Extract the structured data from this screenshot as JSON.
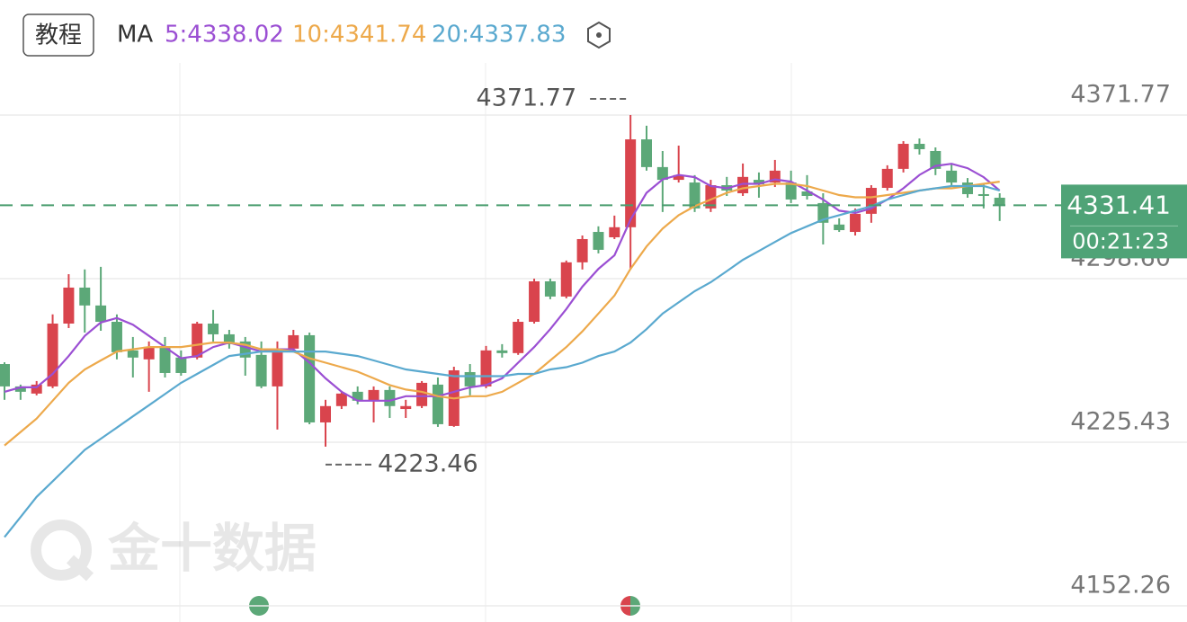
{
  "header": {
    "button": "教程",
    "ma_title": "MA"
  },
  "chart_data": {
    "type": "candlestick",
    "watermark": "金十数据",
    "ylim": [
      4145.03,
      4399.11
    ],
    "yticks": [
      4371.77,
      {
        "value": 4298.6,
        "label": "4298.60"
      },
      4225.43,
      4152.26
    ],
    "grid": true,
    "up_color": "#d9444d",
    "down_color": "#5ca878",
    "open": [
      4260.4,
      4250.4,
      4247.2,
      4250.4,
      4278.5,
      4294.6,
      4286.6,
      4279.3,
      4266.5,
      4262.5,
      4268.1,
      4263.3,
      4263.3,
      4278.5,
      4273.7,
      4270.5,
      4264.5,
      4250.4,
      4267.3,
      4273.3,
      4234.3,
      4241.6,
      4248.0,
      4244.0,
      4248.8,
      4240.3,
      4241.6,
      4251.2,
      4232.7,
      4256.8,
      4250.4,
      4266.5,
      4265.3,
      4279.3,
      4297.4,
      4290.6,
      4305.9,
      4319.5,
      4317.1,
      4321.6,
      4360.9,
      4348.5,
      4342.8,
      4341.6,
      4330.0,
      4340.4,
      4336.8,
      4342.8,
      4341.6,
      4341.6,
      4337.6,
      4332.4,
      4322.8,
      4319.5,
      4327.6,
      4339.2,
      4347.7,
      4358.9,
      4355.7,
      4346.9,
      4341.6,
      4336.4,
      4334.8
    ],
    "high": [
      4261.2,
      4251.2,
      4252.8,
      4282.6,
      4300.6,
      4302.7,
      4303.9,
      4282.6,
      4272.5,
      4270.5,
      4272.5,
      4266.5,
      4279.3,
      4284.6,
      4275.7,
      4272.5,
      4270.5,
      4270.5,
      4275.7,
      4274.5,
      4244.4,
      4248.4,
      4250.4,
      4250.4,
      4250.4,
      4244.4,
      4252.8,
      4254.4,
      4259.2,
      4260.4,
      4268.5,
      4269.3,
      4280.5,
      4298.6,
      4298.6,
      4306.7,
      4317.9,
      4322.0,
      4326.8,
      4371.77,
      4367.0,
      4355.7,
      4358.1,
      4344.9,
      4342.8,
      4344.1,
      4350.1,
      4346.1,
      4351.7,
      4346.9,
      4344.9,
      4336.8,
      4325.6,
      4330.0,
      4340.4,
      4349.3,
      4360.1,
      4361.3,
      4357.3,
      4350.1,
      4343.6,
      4340.8,
      4336.8
    ],
    "low": [
      4244.4,
      4244.4,
      4246.4,
      4249.6,
      4276.5,
      4274.5,
      4275.3,
      4262.5,
      4254.4,
      4248.0,
      4254.4,
      4255.2,
      4262.5,
      4270.5,
      4267.3,
      4255.2,
      4249.6,
      4231.1,
      4265.7,
      4233.5,
      4223.46,
      4240.3,
      4242.4,
      4234.3,
      4236.3,
      4236.3,
      4240.7,
      4232.3,
      4232.3,
      4246.4,
      4249.6,
      4263.3,
      4264.5,
      4278.5,
      4289.4,
      4289.8,
      4302.7,
      4309.9,
      4316.3,
      4302.7,
      4346.9,
      4328.4,
      4341.6,
      4328.4,
      4328.4,
      4335.6,
      4335.6,
      4334.8,
      4339.6,
      4332.4,
      4334.0,
      4313.9,
      4319.5,
      4317.9,
      4323.6,
      4338.0,
      4346.1,
      4354.1,
      4344.9,
      4340.4,
      4334.8,
      4330.0,
      4324.4
    ],
    "close": [
      4250.4,
      4248.0,
      4251.2,
      4278.5,
      4294.6,
      4286.6,
      4279.3,
      4265.7,
      4263.3,
      4268.1,
      4256.4,
      4256.4,
      4278.5,
      4273.7,
      4269.3,
      4263.3,
      4250.4,
      4267.3,
      4273.3,
      4234.3,
      4241.6,
      4247.2,
      4244.0,
      4248.8,
      4241.6,
      4241.6,
      4252.0,
      4233.5,
      4257.6,
      4250.4,
      4266.5,
      4265.3,
      4279.3,
      4297.4,
      4290.6,
      4305.9,
      4316.3,
      4311.5,
      4321.6,
      4360.9,
      4348.5,
      4342.8,
      4344.9,
      4330.0,
      4340.4,
      4338.0,
      4344.1,
      4340.8,
      4346.9,
      4334.0,
      4335.6,
      4323.6,
      4320.3,
      4327.6,
      4339.2,
      4347.7,
      4358.9,
      4356.5,
      4347.7,
      4341.6,
      4336.4,
      4335.6,
      4331.41
    ],
    "series": [
      {
        "label": "5:4338.02",
        "color": "#9b4fd3",
        "values": [
          4248,
          4250,
          4250,
          4256,
          4264,
          4273,
          4279,
          4281,
          4278,
          4273,
          4268,
          4263,
          4264,
          4268,
          4270,
          4268,
          4266,
          4267,
          4267,
          4261,
          4254,
          4248,
          4244,
          4244,
          4244,
          4246,
          4246,
          4246,
          4248,
          4250,
          4251,
          4254,
          4261,
          4268,
          4276,
          4285,
          4295,
          4303,
          4309,
          4325,
          4337,
          4343,
          4345,
          4344,
          4340,
          4339,
          4341,
          4341,
          4343,
          4342,
          4338,
          4334,
          4329,
          4328,
          4330,
          4334,
          4339,
          4345,
          4349,
          4350,
          4348,
          4344,
          4338
        ]
      },
      {
        "label": "10:4341.74",
        "color": "#eda94b",
        "values": [
          4224,
          4230,
          4236,
          4244,
          4252,
          4258,
          4262,
          4266,
          4267,
          4268,
          4268,
          4268,
          4269,
          4270,
          4270,
          4269,
          4267,
          4267,
          4266,
          4263,
          4261,
          4259,
          4257,
          4254,
          4251,
          4249,
          4248,
          4246,
          4245,
          4246,
          4246,
          4248,
          4252,
          4256,
          4262,
          4268,
          4275,
          4283,
          4291,
          4303,
          4313,
          4321,
          4327,
          4331,
          4334,
          4337,
          4339,
          4340,
          4341,
          4341,
          4340,
          4338,
          4336,
          4335,
          4335,
          4336,
          4337,
          4338,
          4339,
          4339,
          4340,
          4341,
          4342
        ]
      },
      {
        "label": "20:4337.83",
        "color": "#5aa9cf",
        "values": [
          4183,
          4192,
          4201,
          4208,
          4215,
          4222,
          4227,
          4232,
          4237,
          4242,
          4247,
          4252,
          4256,
          4260,
          4264,
          4265,
          4266,
          4266,
          4266,
          4266,
          4266,
          4265,
          4264,
          4262,
          4260,
          4258,
          4257,
          4256,
          4255,
          4255,
          4255,
          4255,
          4256,
          4256,
          4258,
          4259,
          4261,
          4264,
          4266,
          4270,
          4276,
          4283,
          4288,
          4293,
          4297,
          4302,
          4307,
          4311,
          4315,
          4319,
          4322,
          4325,
          4327,
          4329,
          4331,
          4334,
          4336,
          4338,
          4339,
          4340,
          4340,
          4340,
          4338
        ]
      }
    ],
    "last_price": 4331.41,
    "countdown": "00:21:23",
    "high_label": 4371.77,
    "low_label": 4223.46
  }
}
